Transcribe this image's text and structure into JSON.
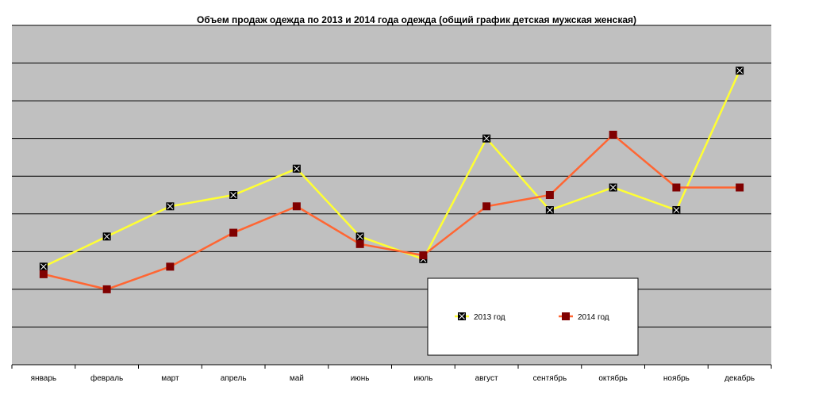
{
  "chart_data": {
    "type": "line",
    "title": "Объем продаж одежда по 2013 и 2014 года одежда (общий график детская мужская женская)",
    "xlabel": "",
    "ylabel": "",
    "categories": [
      "январь",
      "февраль",
      "март",
      "апрель",
      "май",
      "июнь",
      "июль",
      "август",
      "сентябрь",
      "октябрь",
      "ноябрь",
      "декабрь"
    ],
    "ylim": [
      0,
      9
    ],
    "grid": true,
    "legend": "bottom-right",
    "series": [
      {
        "name": "2013 год",
        "color": "#ffff33",
        "marker": "x-square",
        "values": [
          2.6,
          3.4,
          4.2,
          4.5,
          5.2,
          3.4,
          2.8,
          6.0,
          4.1,
          4.7,
          4.1,
          7.8
        ]
      },
      {
        "name": "2014 год",
        "color": "#ff6633",
        "marker": "square",
        "values": [
          2.4,
          2.0,
          2.6,
          3.5,
          4.2,
          3.2,
          2.9,
          4.2,
          4.5,
          6.1,
          4.7,
          4.7
        ]
      }
    ],
    "colors": {
      "plot_background": "#c0c0c0",
      "gridline": "#000000",
      "marker_2014": "#800000"
    }
  }
}
